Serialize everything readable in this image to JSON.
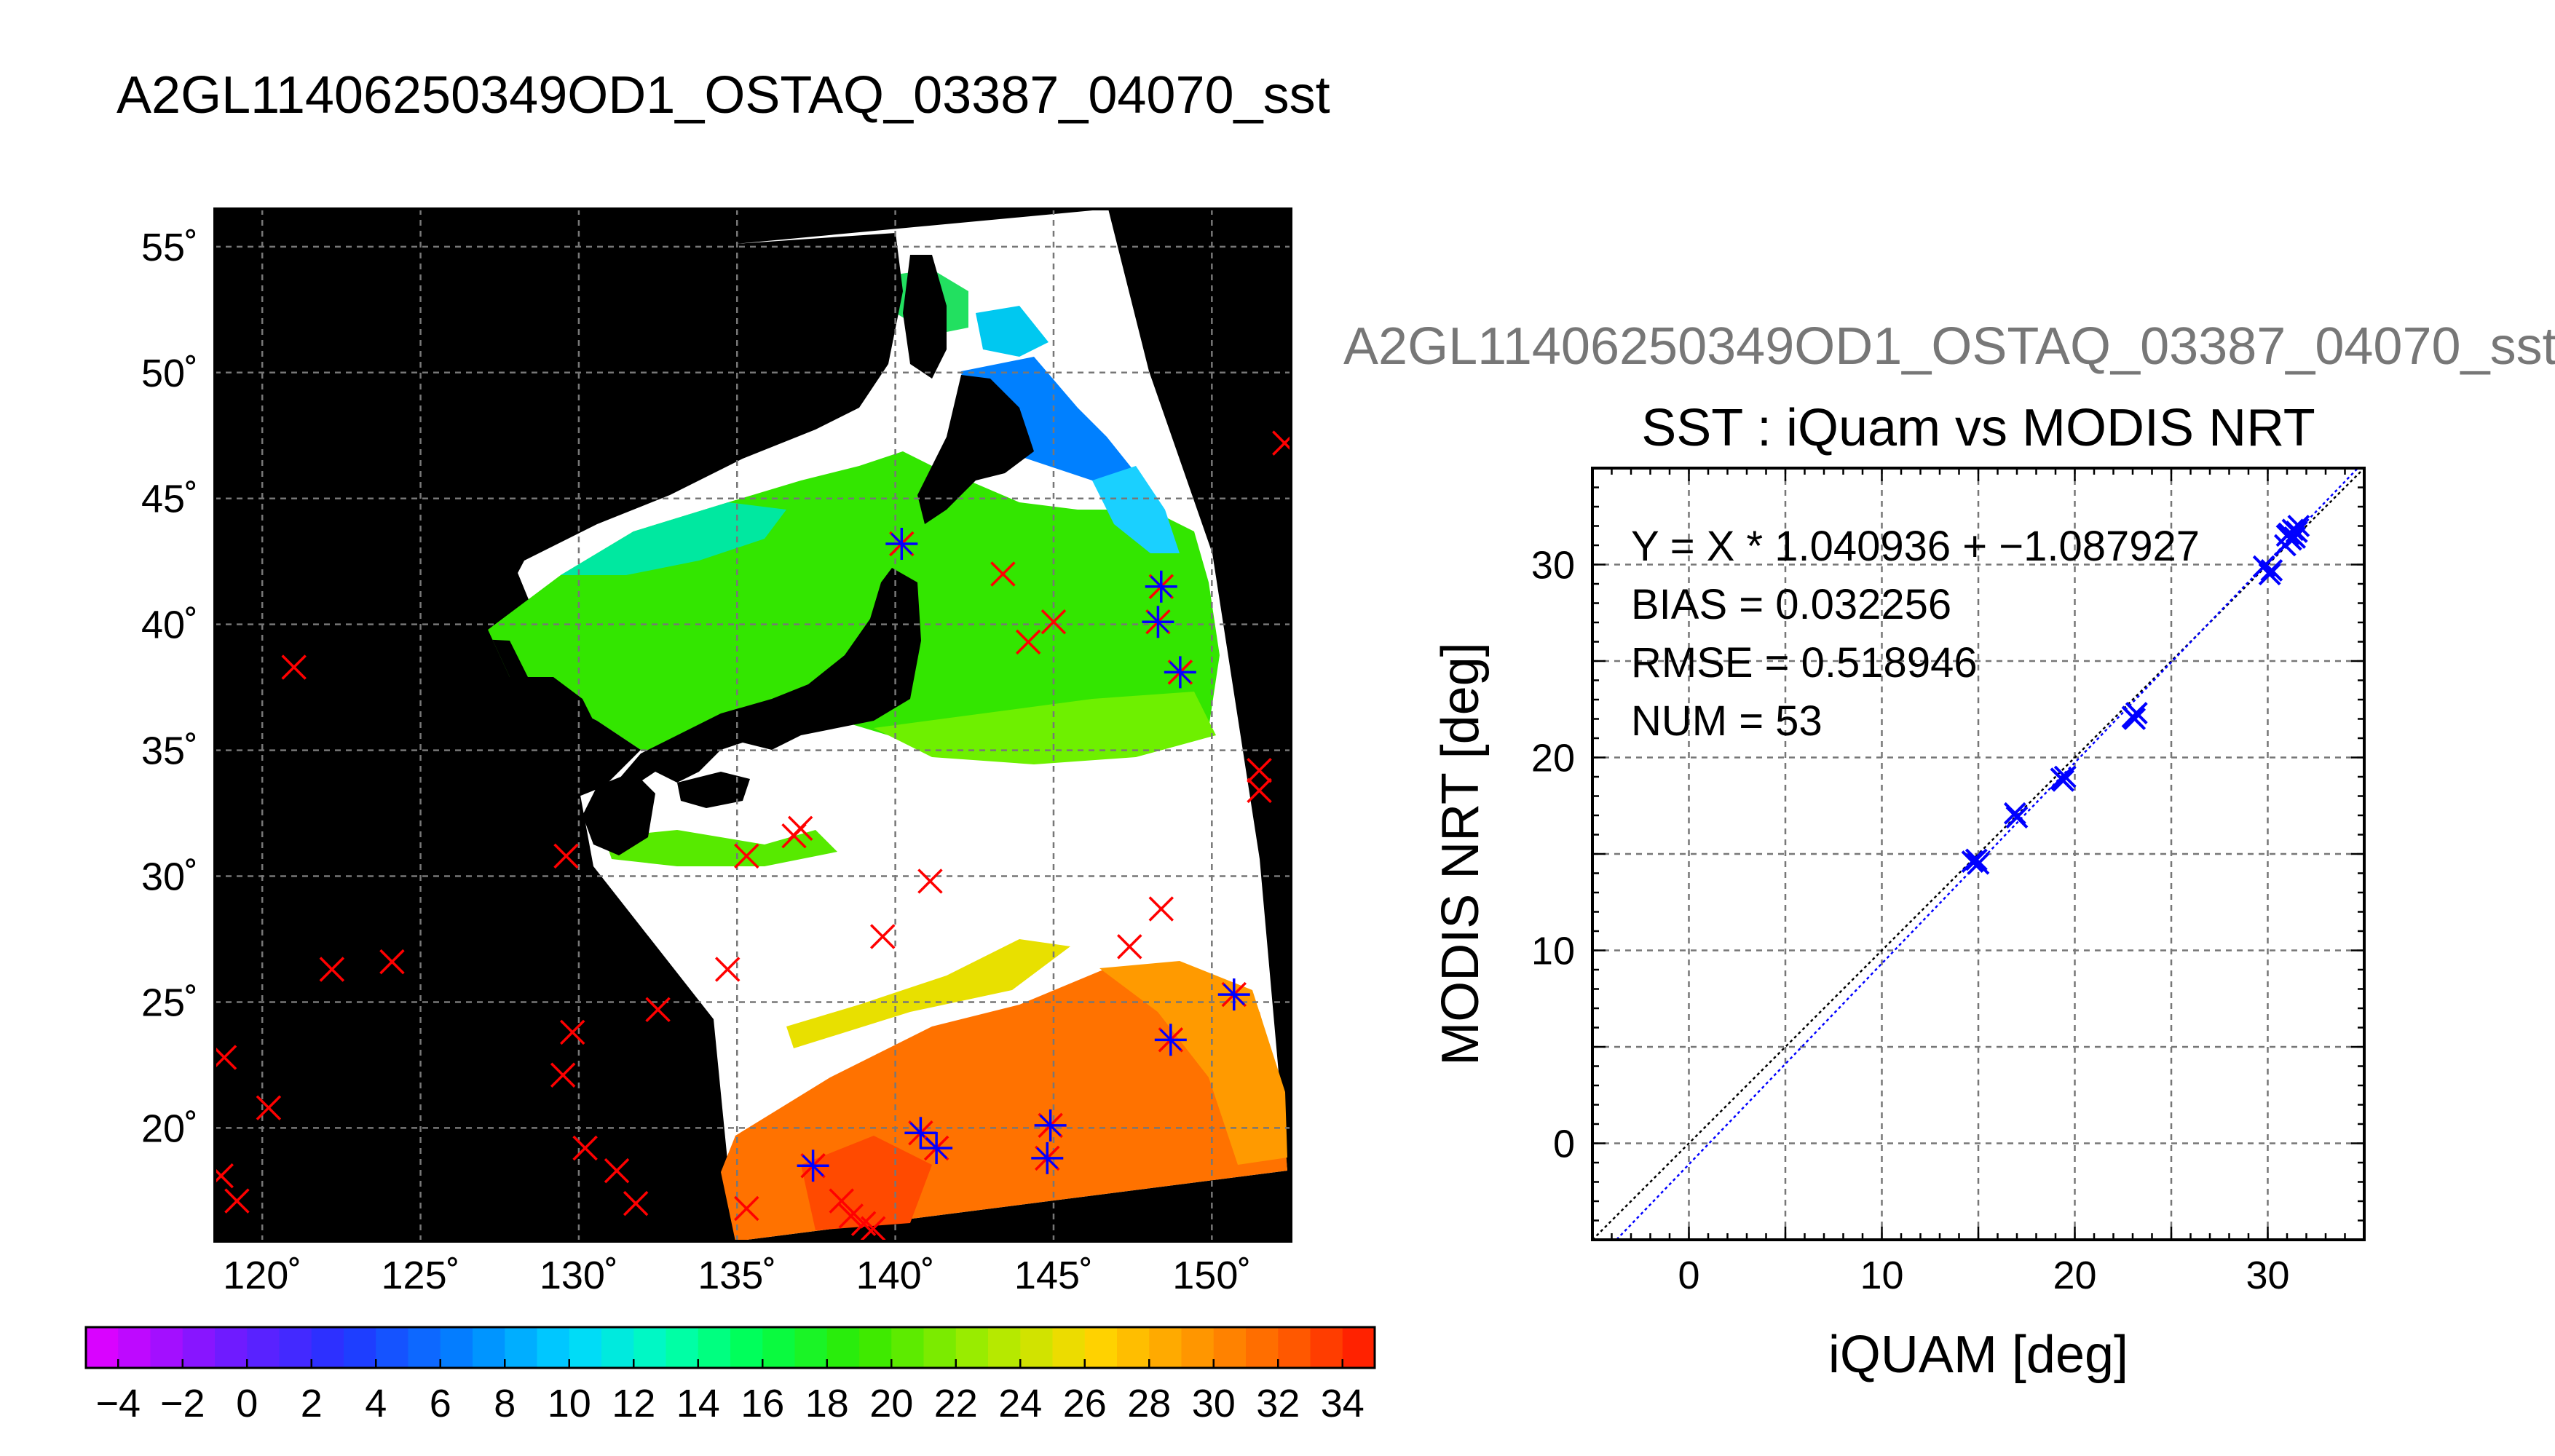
{
  "main_title": "A2GL11406250349OD1_OSTAQ_03387_04070_sst",
  "sub_title": "A2GL11406250349OD1_OSTAQ_03387_04070_sst",
  "colors": {
    "land": "#000000",
    "cloud": "#ffffff",
    "grid": "#777777",
    "matchup_marker": "#ff0000",
    "valid_marker": "#0000ff"
  },
  "chart_data": [
    {
      "type": "map",
      "xlim": [
        118.5,
        152.5
      ],
      "ylim": [
        15.5,
        56.5
      ],
      "lon_ticks": [
        "120˚",
        "125˚",
        "130˚",
        "135˚",
        "140˚",
        "145˚",
        "150˚"
      ],
      "lon_tick_values": [
        120,
        125,
        130,
        135,
        140,
        145,
        150
      ],
      "lat_ticks": [
        "55˚",
        "50˚",
        "45˚",
        "40˚",
        "35˚",
        "30˚",
        "25˚",
        "20˚"
      ],
      "lat_tick_values": [
        55,
        50,
        45,
        40,
        35,
        30,
        25,
        20
      ],
      "grid": true,
      "red_markers": [
        [
          152.3,
          47.2
        ],
        [
          121,
          38.3
        ],
        [
          118.8,
          22.8
        ],
        [
          120.2,
          20.8
        ],
        [
          118.7,
          18.1
        ],
        [
          119.2,
          17.1
        ],
        [
          122.2,
          26.3
        ],
        [
          124.1,
          26.6
        ],
        [
          129.6,
          30.8
        ],
        [
          129.8,
          23.8
        ],
        [
          129.5,
          22.1
        ],
        [
          130.2,
          19.2
        ],
        [
          131.2,
          18.3
        ],
        [
          131.8,
          17
        ],
        [
          132.5,
          24.7
        ],
        [
          134.7,
          26.3
        ],
        [
          135.3,
          30.8
        ],
        [
          137,
          31.9
        ],
        [
          136.8,
          31.6
        ],
        [
          139.6,
          27.6
        ],
        [
          141.1,
          29.8
        ],
        [
          135.3,
          16.8
        ],
        [
          138.3,
          17.1
        ],
        [
          138.6,
          16.5
        ],
        [
          139,
          16.2
        ],
        [
          139.3,
          16
        ],
        [
          144.2,
          39.3
        ],
        [
          145,
          40.1
        ],
        [
          143.4,
          42
        ],
        [
          151.5,
          34.2
        ],
        [
          151.5,
          33.4
        ],
        [
          147.4,
          27.2
        ],
        [
          148.4,
          28.7
        ]
      ],
      "blue_markers": [
        [
          140.2,
          43.2
        ],
        [
          148.4,
          41.5
        ],
        [
          148.3,
          40.1
        ],
        [
          149,
          38.1
        ],
        [
          148.7,
          23.5
        ],
        [
          150.7,
          25.3
        ],
        [
          144.9,
          20.1
        ],
        [
          144.8,
          18.8
        ],
        [
          140.8,
          19.8
        ],
        [
          141.3,
          19.2
        ],
        [
          137.4,
          18.5
        ]
      ],
      "colorbar": {
        "min": -5,
        "max": 35,
        "tick_labels": [
          "−4",
          "−2",
          "0",
          "2",
          "4",
          "6",
          "8",
          "10",
          "12",
          "14",
          "16",
          "18",
          "20",
          "22",
          "24",
          "26",
          "28",
          "30",
          "32",
          "34"
        ],
        "tick_values": [
          -4,
          -2,
          0,
          2,
          4,
          6,
          8,
          10,
          12,
          14,
          16,
          18,
          20,
          22,
          24,
          26,
          28,
          30,
          32,
          34
        ]
      }
    },
    {
      "type": "scatter",
      "title": "SST : iQuam vs MODIS NRT",
      "xlabel": "iQUAM [deg]",
      "ylabel": "MODIS NRT [deg]",
      "xlim": [
        -5,
        35
      ],
      "ylim": [
        -5,
        35
      ],
      "x_ticks": [
        0,
        10,
        20,
        30
      ],
      "y_ticks": [
        0,
        10,
        20,
        30
      ],
      "grid": true,
      "annotations": [
        "Y = X * 1.040936 + −1.087927",
        "BIAS = 0.032256",
        "RMSE = 0.518946",
        "NUM = 53"
      ],
      "fit": {
        "slope": 1.040936,
        "intercept": -1.087927
      },
      "points": [
        [
          14.7,
          14.6
        ],
        [
          15,
          14.5
        ],
        [
          14.9,
          14.7
        ],
        [
          16.9,
          17.1
        ],
        [
          17,
          16.9
        ],
        [
          19.3,
          18.9
        ],
        [
          19.4,
          18.8
        ],
        [
          19.5,
          19
        ],
        [
          23,
          22.1
        ],
        [
          23.2,
          22.3
        ],
        [
          23.1,
          22
        ],
        [
          29.8,
          29.9
        ],
        [
          30.1,
          29.5
        ],
        [
          30.2,
          29.7
        ],
        [
          31,
          31.5
        ],
        [
          31.2,
          31.3
        ],
        [
          31.3,
          31.8
        ],
        [
          31.1,
          31.6
        ],
        [
          31.4,
          31.4
        ],
        [
          31.5,
          31.7
        ],
        [
          30.9,
          31
        ],
        [
          31.6,
          32
        ]
      ]
    }
  ]
}
